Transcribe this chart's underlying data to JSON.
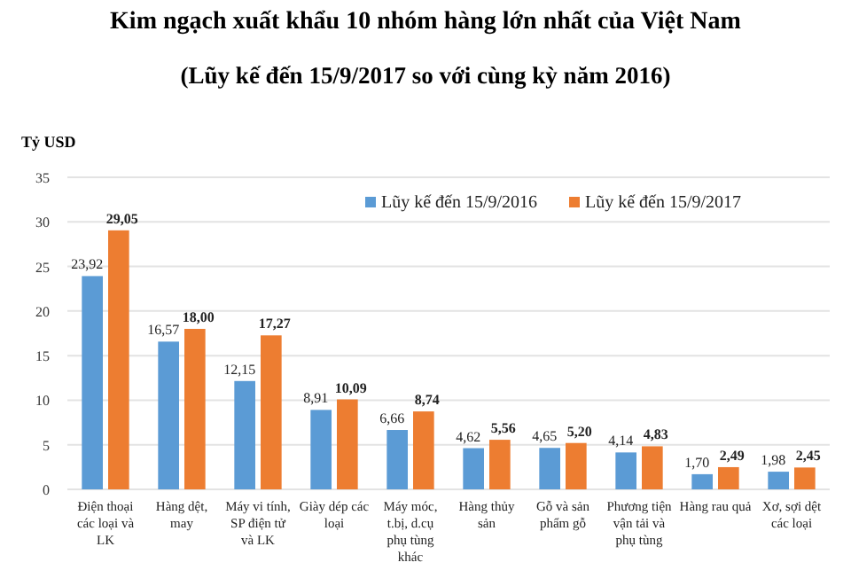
{
  "chart_data": {
    "type": "bar",
    "title": "Kim ngạch xuất khẩu 10 nhóm hàng lớn nhất  của Việt Nam",
    "subtitle": "(Lũy kế đến 15/9/2017 so với cùng kỳ năm 2016)",
    "ylabel": "Tỷ USD",
    "categories": [
      "Điện thoại các loại và LK",
      "Hàng dệt, may",
      "Máy vi tính, SP điện tử và LK",
      "Giày dép các loại",
      "Máy móc, t.bị, d.cụ phụ tùng khác",
      "Hàng thủy sản",
      "Gỗ và sản phẩm gỗ",
      "Phương tiện vận tải và phụ tùng",
      "Hàng rau quả",
      "Xơ, sợi dệt các loại"
    ],
    "series": [
      {
        "name": "Lũy kế đến 15/9/2016",
        "color": "#5b9bd5",
        "values": [
          23.92,
          16.57,
          12.15,
          8.91,
          6.66,
          4.62,
          4.65,
          4.14,
          1.7,
          1.98
        ],
        "value_labels": [
          "23,92",
          "16,57",
          "12,15",
          "8,91",
          "6,66",
          "4,62",
          "4,65",
          "4,14",
          "1,70",
          "1,98"
        ]
      },
      {
        "name": "Lũy kế đến 15/9/2017",
        "color": "#ed7d31",
        "values": [
          29.05,
          18.0,
          17.27,
          10.09,
          8.74,
          5.56,
          5.2,
          4.83,
          2.49,
          2.45
        ],
        "value_labels": [
          "29,05",
          "18,00",
          "17,27",
          "10,09",
          "8,74",
          "5,56",
          "5,20",
          "4,83",
          "2,49",
          "2,45"
        ]
      }
    ],
    "ylim": [
      0,
      35
    ],
    "yticks": [
      0,
      5,
      10,
      15,
      20,
      25,
      30,
      35
    ],
    "grid": "y",
    "legend": "top right"
  }
}
